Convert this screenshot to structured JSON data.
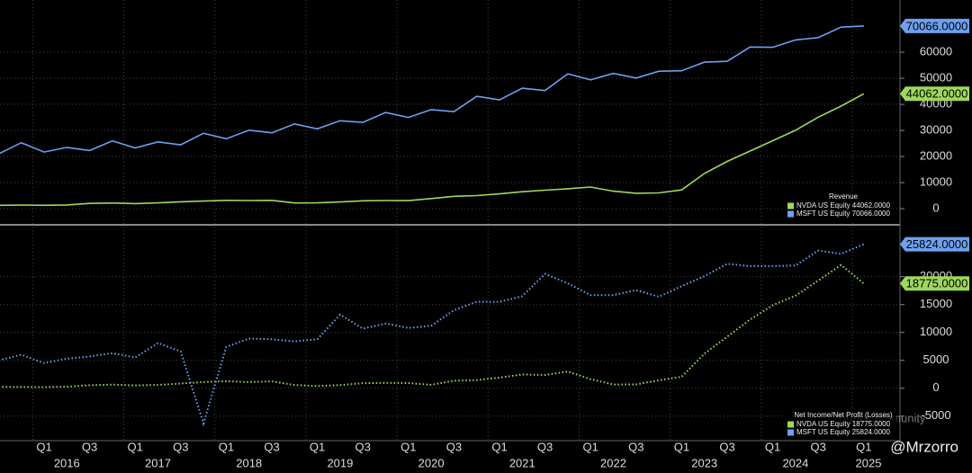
{
  "x_axis": {
    "categories": [
      null,
      null,
      "Q1",
      null,
      "Q3",
      null,
      "Q1",
      null,
      "Q3",
      null,
      "Q1",
      null,
      "Q3",
      null,
      "Q1",
      null,
      "Q3",
      null,
      "Q1",
      null,
      "Q3",
      null,
      "Q1",
      null,
      "Q3",
      null,
      "Q1",
      null,
      "Q3",
      null,
      "Q1",
      null,
      "Q3",
      null,
      "Q1",
      null,
      "Q3",
      null,
      "Q1"
    ],
    "years": [
      "2016",
      "2017",
      "2018",
      "2019",
      "2020",
      "2021",
      "2022",
      "2023",
      "2024",
      "2025"
    ]
  },
  "chart_data": [
    {
      "type": "line",
      "title": "Revenue",
      "ylim": [
        -5500,
        78300
      ],
      "yticks": [
        0,
        10000,
        20000,
        30000,
        40000,
        50000,
        60000
      ],
      "series": [
        {
          "name": "NVDA US Equity 44062.0000",
          "last_label": "44062.0000",
          "color": "#9ed85a",
          "style": "solid",
          "values": [
            1305,
            1401,
            1305,
            1428,
            2004,
            2173,
            1937,
            2230,
            2636,
            2911,
            3207,
            3123,
            3181,
            2205,
            2220,
            2579,
            3014,
            3105,
            3080,
            3866,
            4726,
            5003,
            5661,
            6507,
            7103,
            7643,
            8288,
            6704,
            5931,
            6051,
            7192,
            13507,
            18120,
            22103,
            26044,
            30040,
            35082,
            39331,
            44062
          ]
        },
        {
          "name": "MSFT US Equity 70066.0000",
          "last_label": "70066.0000",
          "color": "#6ea0f0",
          "style": "solid",
          "values": [
            21000,
            25300,
            21700,
            23500,
            22300,
            26000,
            23300,
            25600,
            24500,
            28900,
            26800,
            30100,
            29100,
            32500,
            30600,
            33700,
            33100,
            36900,
            35000,
            38000,
            37200,
            43100,
            41700,
            46200,
            45300,
            51700,
            49400,
            51900,
            50100,
            52700,
            52900,
            56200,
            56500,
            62000,
            61900,
            64700,
            65600,
            69600,
            70066
          ]
        }
      ]
    },
    {
      "type": "line",
      "title": "Net Income/Net Profit (Losses)",
      "ylim": [
        -9400,
        28500
      ],
      "yticks": [
        -5000,
        0,
        5000,
        10000,
        15000,
        20000
      ],
      "series": [
        {
          "name": "NVDA US Equity 18775.0000",
          "last_label": "18775.0000",
          "color": "#9ed85a",
          "style": "dotted",
          "values": [
            246,
            207,
            194,
            253,
            542,
            655,
            507,
            583,
            838,
            1118,
            1244,
            1101,
            1230,
            567,
            394,
            552,
            899,
            950,
            917,
            622,
            1336,
            1457,
            1912,
            2464,
            2375,
            3003,
            1618,
            656,
            680,
            1414,
            2043,
            6188,
            9243,
            12285,
            14881,
            16599,
            19309,
            22091,
            18775
          ]
        },
        {
          "name": "MSFT US Equity 25824.0000",
          "last_label": "25824.0000",
          "color": "#6ea0f0",
          "style": "dotted",
          "values": [
            5000,
            6000,
            4500,
            5300,
            5700,
            6300,
            5500,
            8100,
            6600,
            -6300,
            7400,
            8900,
            8800,
            8400,
            8800,
            13200,
            10700,
            11600,
            10800,
            11200,
            14000,
            15500,
            15500,
            16500,
            20500,
            18800,
            16700,
            16700,
            17600,
            16400,
            18300,
            20100,
            22300,
            21900,
            21900,
            22000,
            24700,
            24100,
            25824
          ]
        }
      ]
    }
  ],
  "watermark": {
    "handle": "@Mrzorro",
    "site": "Tiger Community"
  }
}
